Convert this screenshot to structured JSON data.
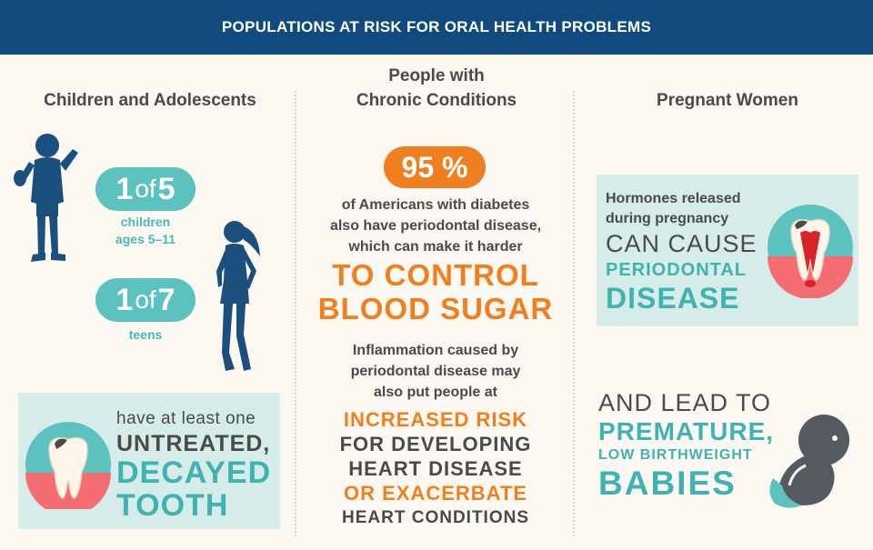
{
  "banner": {
    "title": "POPULATIONS AT RISK FOR ORAL HEALTH PROBLEMS"
  },
  "children": {
    "title": "Children and Adolescents",
    "stat1": {
      "num": "1",
      "of": "of",
      "den": "5",
      "label_line1": "children",
      "label_line2": "ages 5–11"
    },
    "stat2": {
      "num": "1",
      "of": "of",
      "den": "7",
      "label": "teens"
    },
    "box": {
      "line1": "have at least one",
      "line2": "UNTREATED,",
      "line3": "DECAYED",
      "line4": "TOOTH"
    }
  },
  "chronic": {
    "title_line1": "People with",
    "title_line2": "Chronic Conditions",
    "stat": "95 %",
    "text1_line1": "of Americans with diabetes",
    "text1_line2": "also have periodontal disease,",
    "text1_line3": "which can make it harder",
    "emph1_line1": "TO CONTROL",
    "emph1_line2": "BLOOD SUGAR",
    "text2_line1": "Inflammation caused by",
    "text2_line2": "periodontal disease may",
    "text2_line3": "also put people at",
    "emph2_line1": "INCREASED RISK",
    "emph2_line2": "FOR DEVELOPING",
    "emph2_line3": "HEART DISEASE",
    "emph2_line4": "OR EXACERBATE",
    "emph2_line5": "HEART CONDITIONS"
  },
  "pregnant": {
    "title": "Pregnant Women",
    "box": {
      "line1": "Hormones released",
      "line2": "during pregnancy",
      "line3": "CAN CAUSE",
      "line4": "PERIODONTAL",
      "line5": "DISEASE"
    },
    "lower": {
      "line1": "AND LEAD TO",
      "line2": "PREMATURE,",
      "line3": "LOW BIRTHWEIGHT",
      "line4": "BABIES"
    }
  },
  "colors": {
    "banner": "#114a7e",
    "teal": "#5bc2c0",
    "orange": "#f07f1f",
    "silhouette": "#1b4f7e",
    "box": "#d6ece9"
  },
  "icons": [
    "boy-silhouette",
    "girl-silhouette",
    "tooth-decay-icon",
    "tooth-inflamed-icon",
    "fetus-icon"
  ]
}
